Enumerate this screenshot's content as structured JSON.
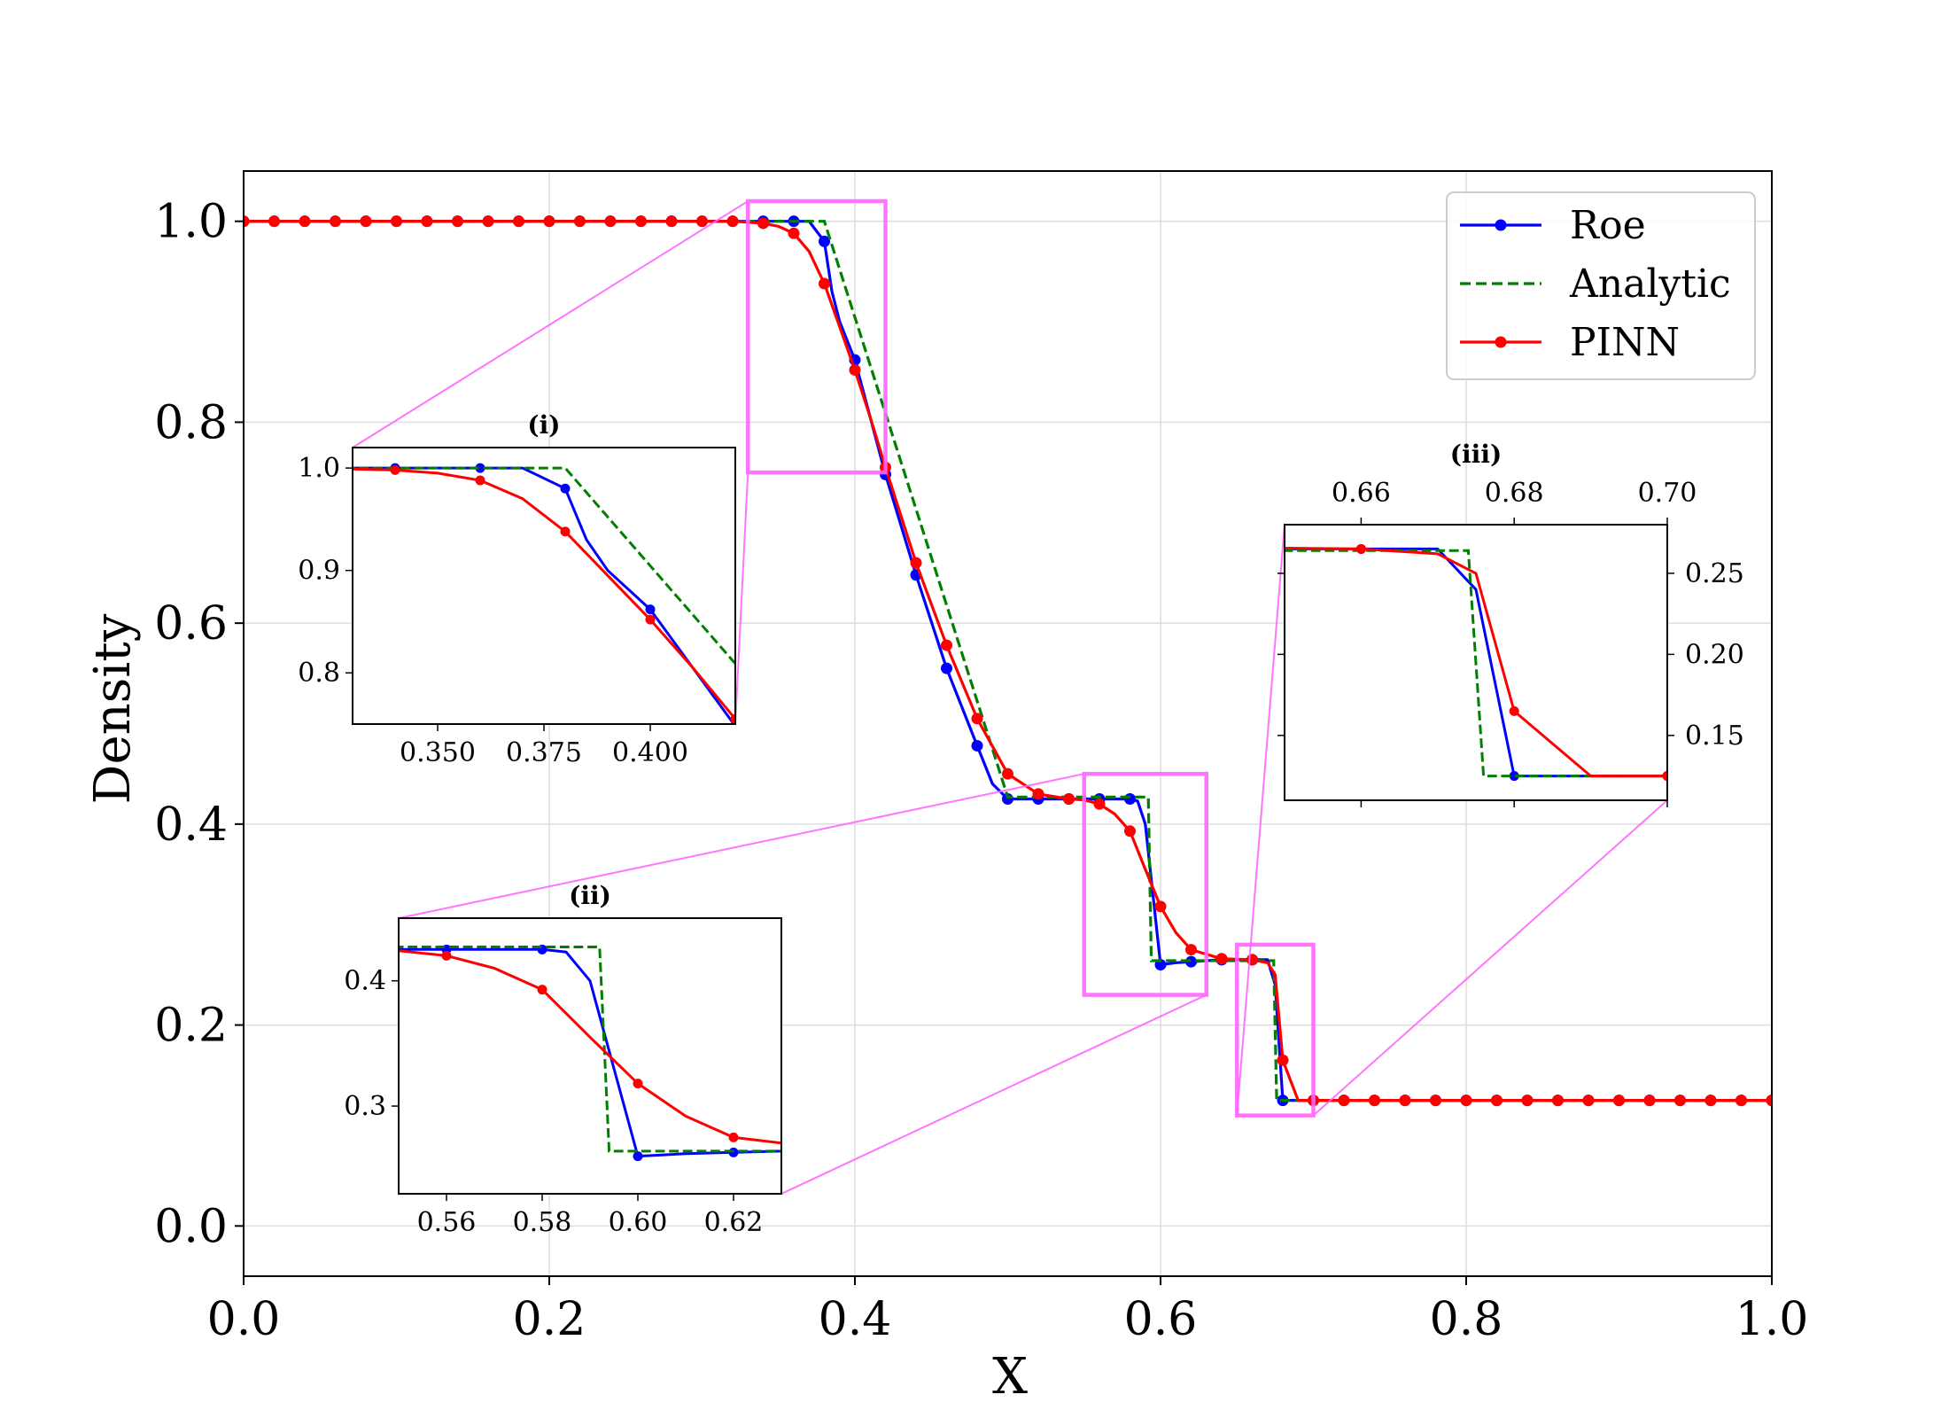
{
  "chart_data": {
    "type": "line",
    "title": "",
    "xlabel": "X",
    "ylabel": "Density",
    "xlim": [
      0.0,
      1.0
    ],
    "ylim": [
      -0.05,
      1.05
    ],
    "x_ticks": [
      "0.0",
      "0.2",
      "0.4",
      "0.6",
      "0.8",
      "1.0"
    ],
    "y_ticks": [
      "0.0",
      "0.2",
      "0.4",
      "0.6",
      "0.8",
      "1.0"
    ],
    "grid": true,
    "legend": "top-right",
    "series": [
      {
        "name": "Roe",
        "color": "#0000ff",
        "style": "solid-with-markers",
        "x": [
          0.0,
          0.02,
          0.04,
          0.06,
          0.08,
          0.1,
          0.12,
          0.14,
          0.16,
          0.18,
          0.2,
          0.22,
          0.24,
          0.26,
          0.28,
          0.3,
          0.32,
          0.34,
          0.36,
          0.37,
          0.38,
          0.385,
          0.39,
          0.4,
          0.42,
          0.44,
          0.46,
          0.48,
          0.49,
          0.5,
          0.52,
          0.54,
          0.56,
          0.58,
          0.585,
          0.59,
          0.595,
          0.6,
          0.61,
          0.62,
          0.64,
          0.66,
          0.67,
          0.675,
          0.68,
          0.69,
          0.7,
          0.72,
          0.74,
          0.76,
          0.78,
          0.8,
          0.82,
          0.84,
          0.86,
          0.88,
          0.9,
          0.92,
          0.94,
          0.96,
          0.98,
          1.0
        ],
        "y": [
          1.0,
          1.0,
          1.0,
          1.0,
          1.0,
          1.0,
          1.0,
          1.0,
          1.0,
          1.0,
          1.0,
          1.0,
          1.0,
          1.0,
          1.0,
          1.0,
          1.0,
          1.0,
          1.0,
          1.0,
          0.98,
          0.93,
          0.9,
          0.862,
          0.748,
          0.648,
          0.555,
          0.478,
          0.44,
          0.425,
          0.425,
          0.425,
          0.425,
          0.425,
          0.423,
          0.4,
          0.33,
          0.26,
          0.262,
          0.263,
          0.265,
          0.265,
          0.265,
          0.24,
          0.125,
          0.125,
          0.125,
          0.125,
          0.125,
          0.125,
          0.125,
          0.125,
          0.125,
          0.125,
          0.125,
          0.125,
          0.125,
          0.125,
          0.125,
          0.125,
          0.125,
          0.125
        ],
        "markers": [
          0.0,
          0.02,
          0.04,
          0.06,
          0.08,
          0.1,
          0.12,
          0.14,
          0.16,
          0.18,
          0.2,
          0.22,
          0.24,
          0.26,
          0.28,
          0.3,
          0.32,
          0.34,
          0.36,
          0.38,
          0.4,
          0.42,
          0.44,
          0.46,
          0.48,
          0.5,
          0.52,
          0.54,
          0.56,
          0.58,
          0.6,
          0.62,
          0.64,
          0.66,
          0.68,
          0.7,
          0.72,
          0.74,
          0.76,
          0.78,
          0.8,
          0.82,
          0.84,
          0.86,
          0.88,
          0.9,
          0.92,
          0.94,
          0.96,
          0.98,
          1.0
        ]
      },
      {
        "name": "Analytic",
        "color": "#008000",
        "style": "dashed",
        "x": [
          0.0,
          0.38,
          0.5,
          0.592,
          0.594,
          0.674,
          0.676,
          1.0
        ],
        "y": [
          1.0,
          1.0,
          0.427,
          0.427,
          0.264,
          0.264,
          0.125,
          0.125
        ]
      },
      {
        "name": "PINN",
        "color": "#ff0000",
        "style": "solid-with-markers",
        "x": [
          0.0,
          0.02,
          0.04,
          0.06,
          0.08,
          0.1,
          0.12,
          0.14,
          0.16,
          0.18,
          0.2,
          0.22,
          0.24,
          0.26,
          0.28,
          0.3,
          0.32,
          0.34,
          0.35,
          0.36,
          0.37,
          0.38,
          0.39,
          0.4,
          0.41,
          0.42,
          0.44,
          0.46,
          0.48,
          0.5,
          0.52,
          0.54,
          0.55,
          0.56,
          0.57,
          0.58,
          0.59,
          0.6,
          0.61,
          0.62,
          0.64,
          0.66,
          0.67,
          0.675,
          0.68,
          0.69,
          0.7,
          0.72,
          0.74,
          0.76,
          0.78,
          0.8,
          0.82,
          0.84,
          0.86,
          0.88,
          0.9,
          0.92,
          0.94,
          0.96,
          0.98,
          1.0
        ],
        "y": [
          1.0,
          1.0,
          1.0,
          1.0,
          1.0,
          1.0,
          1.0,
          1.0,
          1.0,
          1.0,
          1.0,
          1.0,
          1.0,
          1.0,
          1.0,
          1.0,
          1.0,
          0.998,
          0.995,
          0.988,
          0.97,
          0.938,
          0.895,
          0.852,
          0.805,
          0.755,
          0.66,
          0.578,
          0.505,
          0.45,
          0.43,
          0.425,
          0.424,
          0.42,
          0.41,
          0.393,
          0.355,
          0.318,
          0.292,
          0.275,
          0.266,
          0.265,
          0.262,
          0.25,
          0.165,
          0.125,
          0.125,
          0.125,
          0.125,
          0.125,
          0.125,
          0.125,
          0.125,
          0.125,
          0.125,
          0.125,
          0.125,
          0.125,
          0.125,
          0.125,
          0.125,
          0.125
        ],
        "markers": [
          0.0,
          0.02,
          0.04,
          0.06,
          0.08,
          0.1,
          0.12,
          0.14,
          0.16,
          0.18,
          0.2,
          0.22,
          0.24,
          0.26,
          0.28,
          0.3,
          0.32,
          0.34,
          0.36,
          0.38,
          0.4,
          0.42,
          0.44,
          0.46,
          0.48,
          0.5,
          0.52,
          0.54,
          0.56,
          0.58,
          0.6,
          0.62,
          0.64,
          0.66,
          0.68,
          0.7,
          0.72,
          0.74,
          0.76,
          0.78,
          0.8,
          0.82,
          0.84,
          0.86,
          0.88,
          0.9,
          0.92,
          0.94,
          0.96,
          0.98,
          1.0
        ]
      }
    ],
    "zoom_rect_color": "#ff66ff",
    "insets": [
      {
        "title": "(i)",
        "xlim": [
          0.33,
          0.42
        ],
        "ylim": [
          0.75,
          1.02
        ],
        "x_ticks": [
          0.35,
          0.375,
          0.4
        ],
        "x_tick_labels": [
          "0.350",
          "0.375",
          "0.400"
        ],
        "y_ticks": [
          0.8,
          0.9,
          1.0
        ],
        "y_tick_labels": [
          "0.8",
          "0.9",
          "1.0"
        ],
        "x_tick_position": "bottom",
        "y_tick_position": "left"
      },
      {
        "title": "(ii)",
        "xlim": [
          0.55,
          0.63
        ],
        "ylim": [
          0.23,
          0.45
        ],
        "x_ticks": [
          0.56,
          0.58,
          0.6,
          0.62
        ],
        "x_tick_labels": [
          "0.56",
          "0.58",
          "0.60",
          "0.62"
        ],
        "y_ticks": [
          0.3,
          0.4
        ],
        "y_tick_labels": [
          "0.3",
          "0.4"
        ],
        "x_tick_position": "bottom",
        "y_tick_position": "left"
      },
      {
        "title": "(iii)",
        "xlim": [
          0.65,
          0.7
        ],
        "ylim": [
          0.11,
          0.28
        ],
        "x_ticks": [
          0.66,
          0.68,
          0.7
        ],
        "x_tick_labels": [
          "0.66",
          "0.68",
          "0.70"
        ],
        "y_ticks": [
          0.15,
          0.2,
          0.25
        ],
        "y_tick_labels": [
          "0.15",
          "0.20",
          "0.25"
        ],
        "x_tick_position": "top",
        "y_tick_position": "right"
      }
    ]
  }
}
